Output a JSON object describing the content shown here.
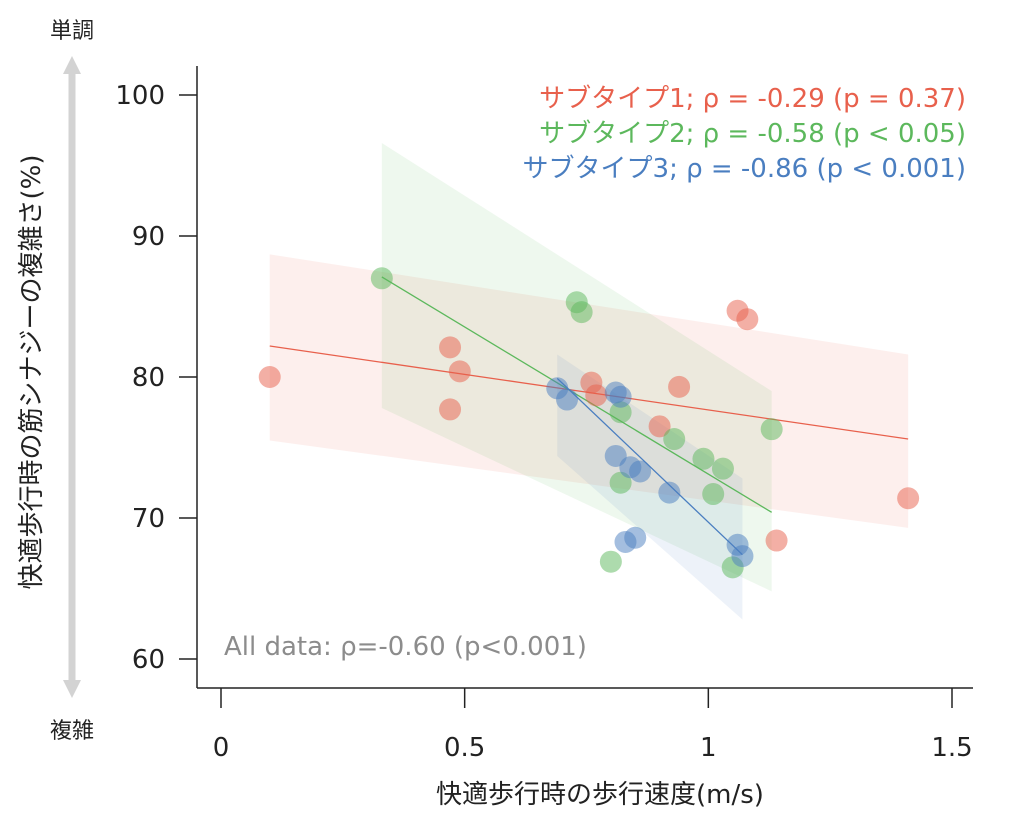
{
  "chart_data": {
    "type": "scatter",
    "xlabel": "快適歩行時の歩行速度(m/s)",
    "ylabel": "快適歩行時の筋シナジーの複雑さ(%)",
    "ylabel_top": "単調",
    "ylabel_bottom": "複雑",
    "xlim": [
      -0.05,
      1.55
    ],
    "ylim": [
      58.2,
      102.2
    ],
    "x_ticks": [
      0,
      0.5,
      1,
      1.5
    ],
    "x_tick_labels": [
      "0",
      "0.5",
      "1",
      "1.5"
    ],
    "y_ticks": [
      60,
      70,
      80,
      90,
      100
    ],
    "y_tick_labels": [
      "60",
      "70",
      "80",
      "90",
      "100"
    ],
    "grid": false,
    "legend_position": "top-right",
    "annotation": "All data: ρ=-0.60 (p<0.001)",
    "series": [
      {
        "name": "サブタイプ1; ρ = -0.29 (p = 0.37)",
        "color": "#e8604c",
        "fit": {
          "x": [
            0.1,
            1.41
          ],
          "y": [
            82.2,
            75.6
          ]
        },
        "band": {
          "x": [
            0.1,
            1.41
          ],
          "upper": [
            88.7,
            81.6
          ],
          "lower": [
            75.5,
            69.3
          ]
        },
        "points": [
          {
            "x": 0.1,
            "y": 80.0
          },
          {
            "x": 0.47,
            "y": 82.1
          },
          {
            "x": 0.49,
            "y": 80.4
          },
          {
            "x": 0.47,
            "y": 77.7
          },
          {
            "x": 0.76,
            "y": 79.6
          },
          {
            "x": 0.77,
            "y": 78.7
          },
          {
            "x": 0.9,
            "y": 76.5
          },
          {
            "x": 0.94,
            "y": 79.3
          },
          {
            "x": 1.06,
            "y": 84.7
          },
          {
            "x": 1.08,
            "y": 84.1
          },
          {
            "x": 1.14,
            "y": 68.4
          },
          {
            "x": 1.41,
            "y": 71.4
          }
        ]
      },
      {
        "name": "サブタイプ2; ρ = -0.58 (p < 0.05)",
        "color": "#5cb85c",
        "fit": {
          "x": [
            0.33,
            1.13
          ],
          "y": [
            87.1,
            70.4
          ]
        },
        "band": {
          "x": [
            0.33,
            1.13
          ],
          "upper": [
            96.6,
            79.0
          ],
          "lower": [
            77.8,
            64.8
          ]
        },
        "points": [
          {
            "x": 0.33,
            "y": 87.0
          },
          {
            "x": 0.73,
            "y": 85.3
          },
          {
            "x": 0.74,
            "y": 84.6
          },
          {
            "x": 0.82,
            "y": 77.5
          },
          {
            "x": 0.93,
            "y": 75.6
          },
          {
            "x": 0.99,
            "y": 74.2
          },
          {
            "x": 1.03,
            "y": 73.5
          },
          {
            "x": 0.82,
            "y": 72.5
          },
          {
            "x": 1.01,
            "y": 71.7
          },
          {
            "x": 0.8,
            "y": 66.9
          },
          {
            "x": 1.05,
            "y": 66.5
          },
          {
            "x": 1.13,
            "y": 76.3
          }
        ]
      },
      {
        "name": "サブタイプ3; ρ = -0.86 (p < 0.001)",
        "color": "#4a7ec0",
        "fit": {
          "x": [
            0.69,
            1.07
          ],
          "y": [
            79.9,
            67.4
          ]
        },
        "band": {
          "x": [
            0.69,
            1.07
          ],
          "upper": [
            81.6,
            72.8
          ],
          "lower": [
            74.4,
            62.8
          ]
        },
        "points": [
          {
            "x": 0.69,
            "y": 79.2
          },
          {
            "x": 0.71,
            "y": 78.4
          },
          {
            "x": 0.81,
            "y": 78.9
          },
          {
            "x": 0.82,
            "y": 78.6
          },
          {
            "x": 0.81,
            "y": 74.4
          },
          {
            "x": 0.84,
            "y": 73.6
          },
          {
            "x": 0.86,
            "y": 73.3
          },
          {
            "x": 0.92,
            "y": 71.8
          },
          {
            "x": 0.83,
            "y": 68.3
          },
          {
            "x": 0.85,
            "y": 68.6
          },
          {
            "x": 1.06,
            "y": 68.1
          },
          {
            "x": 1.07,
            "y": 67.3
          }
        ]
      }
    ]
  }
}
